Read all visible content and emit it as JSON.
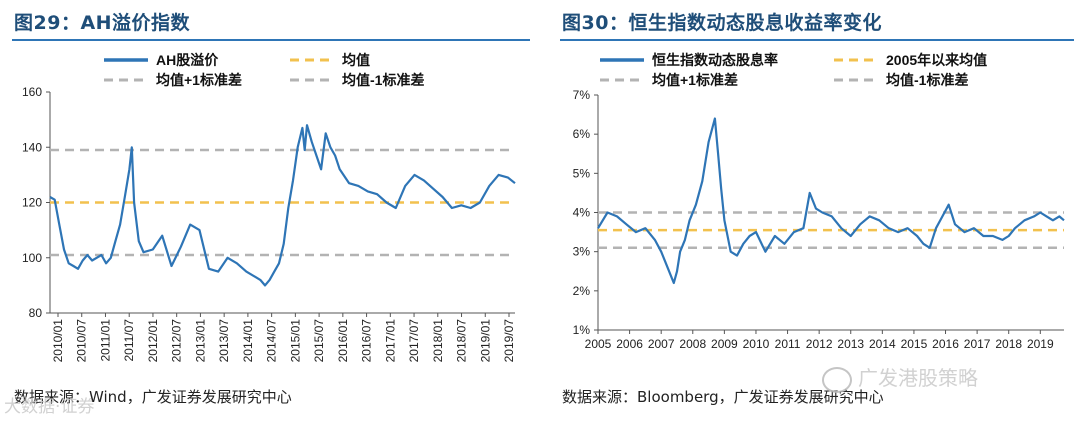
{
  "chart_data": [
    {
      "type": "line",
      "title": "图29：AH溢价指数",
      "ylim": [
        80,
        160
      ],
      "yticks": [
        "80",
        "100",
        "120",
        "140",
        "160"
      ],
      "xlim": [
        2010.0,
        2019.95
      ],
      "xticks": [
        "2010/01",
        "2010/07",
        "2011/01",
        "2011/07",
        "2012/01",
        "2012/07",
        "2013/01",
        "2013/07",
        "2014/01",
        "2014/07",
        "2015/01",
        "2015/07",
        "2016/01",
        "2016/07",
        "2017/01",
        "2017/07",
        "2018/01",
        "2018/07",
        "2019/01",
        "2019/07"
      ],
      "legend": [
        "AH股溢价",
        "均值",
        "均值+1标准差",
        "均值-1标准差"
      ],
      "colors": {
        "series": "#2e75b6",
        "mean": "#f2c14e",
        "band": "#b3b3b3"
      },
      "mean": 120,
      "upper": 139,
      "lower": 101,
      "series": [
        {
          "name": "AH股溢价",
          "x": [
            2010.0,
            2010.1,
            2010.2,
            2010.3,
            2010.4,
            2010.5,
            2010.6,
            2010.7,
            2010.8,
            2010.9,
            2011.0,
            2011.1,
            2011.2,
            2011.3,
            2011.4,
            2011.5,
            2011.6,
            2011.7,
            2011.75,
            2011.8,
            2011.9,
            2012.0,
            2012.2,
            2012.4,
            2012.6,
            2012.8,
            2013.0,
            2013.2,
            2013.4,
            2013.6,
            2013.8,
            2014.0,
            2014.2,
            2014.4,
            2014.5,
            2014.6,
            2014.7,
            2014.8,
            2014.9,
            2015.0,
            2015.1,
            2015.2,
            2015.3,
            2015.4,
            2015.45,
            2015.5,
            2015.6,
            2015.7,
            2015.8,
            2015.9,
            2016.0,
            2016.1,
            2016.2,
            2016.4,
            2016.6,
            2016.8,
            2017.0,
            2017.2,
            2017.4,
            2017.6,
            2017.8,
            2018.0,
            2018.2,
            2018.4,
            2018.6,
            2018.8,
            2019.0,
            2019.2,
            2019.4,
            2019.6,
            2019.8,
            2019.95
          ],
          "values": [
            122,
            121,
            112,
            103,
            98,
            97,
            96,
            99,
            101,
            99,
            100,
            101,
            98,
            100,
            106,
            112,
            122,
            132,
            140,
            120,
            106,
            102,
            103,
            108,
            97,
            104,
            112,
            110,
            96,
            95,
            100,
            98,
            95,
            93,
            92,
            90,
            92,
            95,
            98,
            105,
            118,
            128,
            140,
            147,
            139,
            148,
            142,
            137,
            132,
            145,
            140,
            137,
            132,
            127,
            126,
            124,
            123,
            120,
            118,
            126,
            130,
            128,
            125,
            122,
            118,
            119,
            118,
            120,
            126,
            130,
            129,
            127
          ]
        }
      ]
    },
    {
      "type": "line",
      "title": "图30：恒生指数动态股息收益率变化",
      "ylim": [
        1,
        7
      ],
      "yticks": [
        "1%",
        "2%",
        "3%",
        "4%",
        "5%",
        "6%",
        "7%"
      ],
      "xlim": [
        2005.0,
        2019.75
      ],
      "xticks": [
        "2005",
        "2006",
        "2007",
        "2008",
        "2009",
        "2010",
        "2011",
        "2012",
        "2013",
        "2014",
        "2015",
        "2016",
        "2017",
        "2018",
        "2019"
      ],
      "legend": [
        "恒生指数动态股息率",
        "2005年以来均值",
        "均值+1标准差",
        "均值-1标准差"
      ],
      "colors": {
        "series": "#2e75b6",
        "mean": "#f2c14e",
        "band": "#b3b3b3"
      },
      "mean": 3.55,
      "upper": 4.0,
      "lower": 3.1,
      "series": [
        {
          "name": "恒生指数动态股息率",
          "x": [
            2005.0,
            2005.3,
            2005.6,
            2005.9,
            2006.2,
            2006.5,
            2006.8,
            2007.0,
            2007.2,
            2007.4,
            2007.5,
            2007.6,
            2007.75,
            2007.9,
            2008.1,
            2008.3,
            2008.5,
            2008.7,
            2008.8,
            2008.9,
            2009.0,
            2009.2,
            2009.4,
            2009.6,
            2009.8,
            2010.0,
            2010.3,
            2010.6,
            2010.9,
            2011.2,
            2011.5,
            2011.7,
            2011.9,
            2012.1,
            2012.4,
            2012.7,
            2013.0,
            2013.3,
            2013.6,
            2013.9,
            2014.2,
            2014.5,
            2014.8,
            2015.1,
            2015.3,
            2015.5,
            2015.7,
            2015.9,
            2016.1,
            2016.3,
            2016.6,
            2016.9,
            2017.2,
            2017.5,
            2017.8,
            2018.0,
            2018.2,
            2018.5,
            2018.8,
            2019.0,
            2019.2,
            2019.4,
            2019.6,
            2019.75
          ],
          "values": [
            3.6,
            4.0,
            3.9,
            3.7,
            3.5,
            3.6,
            3.3,
            3.0,
            2.6,
            2.2,
            2.5,
            3.0,
            3.3,
            3.8,
            4.2,
            4.8,
            5.8,
            6.4,
            5.5,
            4.6,
            3.8,
            3.0,
            2.9,
            3.2,
            3.4,
            3.5,
            3.0,
            3.4,
            3.2,
            3.5,
            3.6,
            4.5,
            4.1,
            4.0,
            3.9,
            3.6,
            3.4,
            3.7,
            3.9,
            3.8,
            3.6,
            3.5,
            3.6,
            3.4,
            3.2,
            3.1,
            3.6,
            3.9,
            4.2,
            3.7,
            3.5,
            3.6,
            3.4,
            3.4,
            3.3,
            3.4,
            3.6,
            3.8,
            3.9,
            4.0,
            3.9,
            3.8,
            3.9,
            3.8
          ]
        }
      ]
    }
  ],
  "left_panel": {
    "source": "数据来源：Wind，广发证券发展研究中心",
    "watermark": "大数据·证券"
  },
  "right_panel": {
    "source": "数据来源：Bloomberg，广发证券发展研究中心",
    "watermark": "广发港股策略"
  }
}
